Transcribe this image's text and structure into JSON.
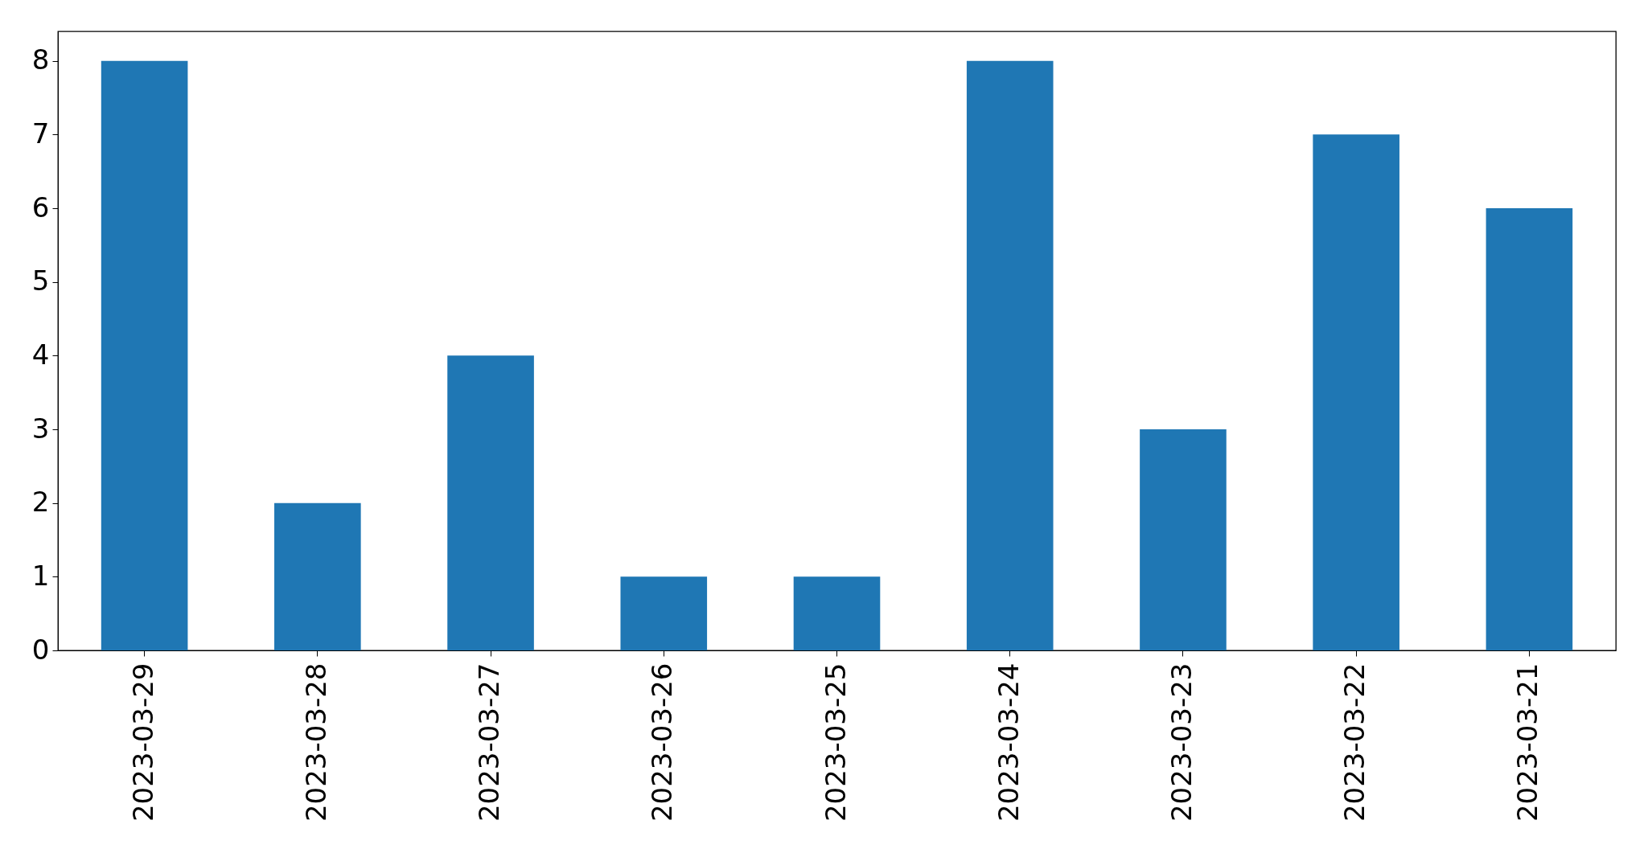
{
  "chart_data": {
    "type": "bar",
    "categories": [
      "2023-03-29",
      "2023-03-28",
      "2023-03-27",
      "2023-03-26",
      "2023-03-25",
      "2023-03-24",
      "2023-03-23",
      "2023-03-22",
      "2023-03-21"
    ],
    "values": [
      8,
      2,
      4,
      1,
      1,
      8,
      3,
      7,
      6
    ],
    "color": "#1f77b4",
    "ylim": [
      0,
      8.4
    ],
    "yticks": [
      0,
      1,
      2,
      3,
      4,
      5,
      6,
      7,
      8
    ],
    "grid": false
  }
}
